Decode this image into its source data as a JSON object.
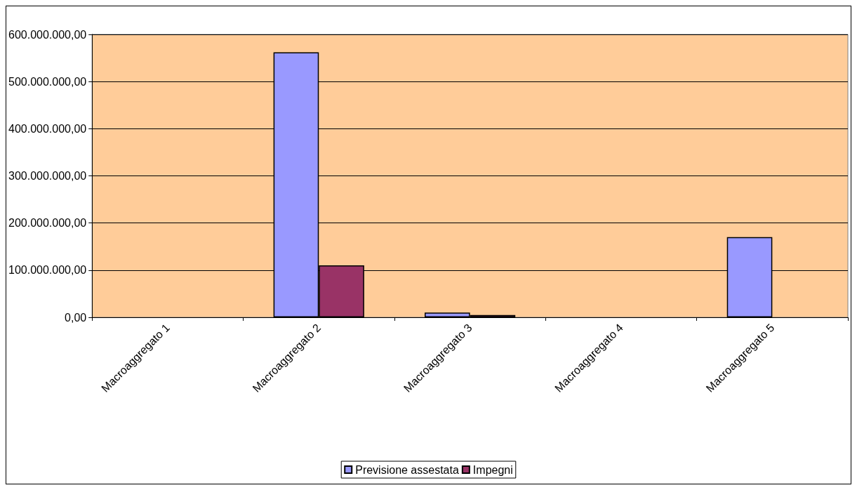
{
  "chart_data": {
    "type": "bar",
    "categories": [
      "Macroaggregato 1",
      "Macroaggregato 2",
      "Macroaggregato 3",
      "Macroaggregato 4",
      "Macroaggregato 5"
    ],
    "series": [
      {
        "name": "Previsione assestata",
        "color": "#9999ff",
        "values": [
          0,
          562000000,
          10000000,
          0,
          170000000
        ]
      },
      {
        "name": "Impegni",
        "color": "#993366",
        "values": [
          0,
          110000000,
          5000000,
          0,
          0
        ]
      }
    ],
    "ylim": [
      0,
      600000000
    ],
    "yticks": [
      {
        "value": 0,
        "label": "0,00"
      },
      {
        "value": 100000000,
        "label": "100.000.000,00"
      },
      {
        "value": 200000000,
        "label": "200.000.000,00"
      },
      {
        "value": 300000000,
        "label": "300.000.000,00"
      },
      {
        "value": 400000000,
        "label": "400.000.000,00"
      },
      {
        "value": 500000000,
        "label": "500.000.000,00"
      },
      {
        "value": 600000000,
        "label": "600.000.000,00"
      }
    ],
    "grid": "y",
    "legend": "bottom"
  }
}
